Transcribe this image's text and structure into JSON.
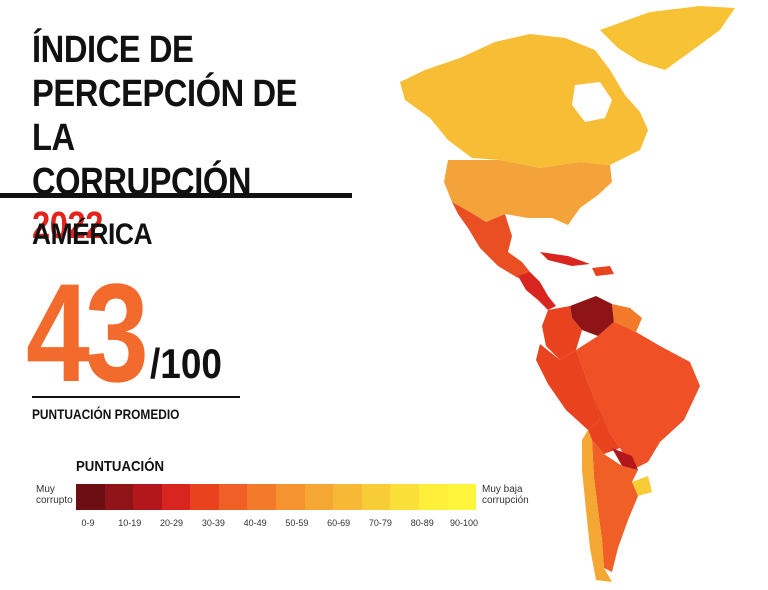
{
  "title": {
    "line1": "ÍNDICE DE",
    "line2": "PERCEPCIÓN DE LA",
    "line3": "CORRUPCIÓN",
    "year": "2022"
  },
  "region": "AMÉRICA",
  "score": {
    "value": "43",
    "max": "/100",
    "label": "PUNTUACIÓN PROMEDIO"
  },
  "legend": {
    "title": "PUNTUACIÓN",
    "low_label": "Muy corrupto",
    "high_label": "Muy baja corrupción",
    "colors": [
      "#6b0f12",
      "#8e1418",
      "#b4171b",
      "#d8251f",
      "#e8421f",
      "#ef5f26",
      "#f27a2a",
      "#f49330",
      "#f5a733",
      "#f6b835",
      "#f8cc37",
      "#fadf38",
      "#fdee3a",
      "#fff53c"
    ],
    "ticks": [
      "0-9",
      "10-19",
      "20-29",
      "30-39",
      "40-49",
      "50-59",
      "60-69",
      "70-79",
      "80-89",
      "90-100"
    ]
  }
}
